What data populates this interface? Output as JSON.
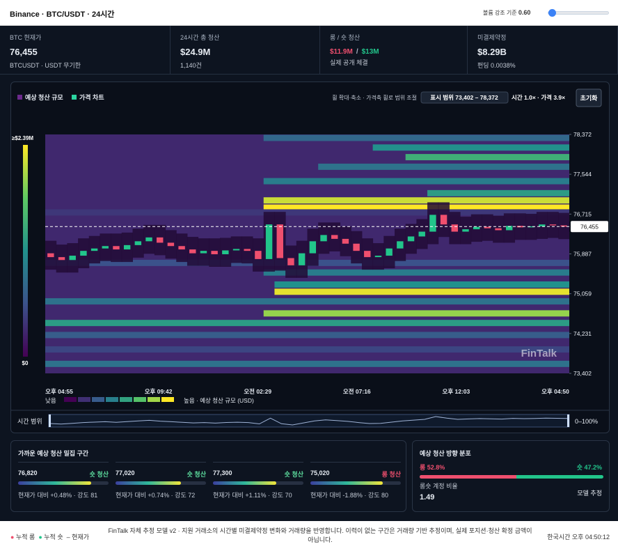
{
  "header": {
    "title": "Binance · BTC/USDT · 24시간",
    "slider_label": "볼륨 강조 기준",
    "slider_value": "0.60"
  },
  "stats": [
    {
      "label": "BTC 현재가",
      "value": "76,455",
      "sub": "BTCUSDT · USDT 무기한"
    },
    {
      "label": "24시간 총 청산",
      "value": "$24.9M",
      "sub": "1,140건"
    },
    {
      "label": "롱 / 숏 청산",
      "long": "$11.9M",
      "sep": "/",
      "short": "$13M",
      "sub": "실제 공개 체결"
    },
    {
      "label": "미결제약정",
      "value": "$8.29B",
      "sub": "펀딩 0.0038%"
    }
  ],
  "chart_data": {
    "type": "liquidation-heatmap",
    "legend": [
      {
        "name": "예상 청산 규모",
        "color": "#6b2a8c"
      },
      {
        "name": "가격 차트",
        "color": "#2bd4a0"
      }
    ],
    "hint": "휠 확대·축소 · 가격축 휠로 범위 조절",
    "range_label": "표시 범위 73,402 – 78,372",
    "zoom_label": "시간 1.0× · 가격 3.9×",
    "reset": "초기화",
    "colorbar_max": "≥$2.39M",
    "colorbar_min": "$0",
    "scale_low": "낮음",
    "scale_high": "높음 · 예상 청산 규모 (USD)",
    "time_range_label": "시간 범위",
    "time_range_value": "0–100%",
    "watermark": "FinTalk",
    "ylim": [
      73402,
      78372
    ],
    "size_max": 2.39,
    "yticks": [
      {
        "value": 78372,
        "label": "78,372"
      },
      {
        "value": 77544,
        "label": "77,544"
      },
      {
        "value": 76715,
        "label": "76,715"
      },
      {
        "value": 75887,
        "label": "75,887"
      },
      {
        "value": 75059,
        "label": "75,059"
      },
      {
        "value": 74231,
        "label": "74,231"
      },
      {
        "value": 73402,
        "label": "73,402"
      }
    ],
    "xlabels": [
      "오후 04:55",
      "오후 09:42",
      "오전 02:29",
      "오전 07:16",
      "오후 12:03",
      "오후 04:50"
    ],
    "current_price": {
      "value": 76455,
      "label": "76,455"
    },
    "open": 75900,
    "close": [
      75820,
      75760,
      75850,
      75950,
      76000,
      76050,
      75980,
      76070,
      76150,
      76230,
      76120,
      76050,
      75980,
      75900,
      75950,
      75880,
      75960,
      75990,
      75950,
      75780,
      76500,
      75800,
      75650,
      75900,
      76150,
      76280,
      76200,
      76100,
      75950,
      75820,
      75850,
      76000,
      76150,
      76250,
      76350,
      76700,
      76500,
      76350,
      76400,
      76450,
      76420,
      76380,
      76470,
      76440,
      76460,
      76500,
      76480,
      76455
    ],
    "up_color": "#22c58b",
    "down_color": "#ef4f6e",
    "bands": [
      {
        "level": 78300,
        "from": 20,
        "size": 0.8
      },
      {
        "level": 78100,
        "from": 30,
        "size": 1.2
      },
      {
        "level": 77900,
        "from": 33,
        "size": 1.5
      },
      {
        "level": 77700,
        "from": 25,
        "size": 0.9
      },
      {
        "level": 77400,
        "from": 20,
        "size": 1.0
      },
      {
        "level": 77150,
        "from": 35,
        "size": 1.3
      },
      {
        "level": 77000,
        "from": 20,
        "size": 2.2
      },
      {
        "level": 76850,
        "from": 20,
        "size": 2.39
      },
      {
        "level": 76750,
        "from": 0,
        "size": 0.4
      },
      {
        "level": 75700,
        "from": 0,
        "size": 0.6
      },
      {
        "level": 75500,
        "from": 20,
        "size": 1.0
      },
      {
        "level": 75250,
        "from": 21,
        "size": 1.2
      },
      {
        "level": 75100,
        "from": 21,
        "size": 2.3
      },
      {
        "level": 74900,
        "from": 0,
        "size": 0.9
      },
      {
        "level": 74650,
        "from": 20,
        "size": 2.0
      },
      {
        "level": 74450,
        "from": 0,
        "size": 1.3
      },
      {
        "level": 74200,
        "from": 0,
        "size": 0.7
      },
      {
        "level": 73900,
        "from": 0,
        "size": 0.5
      },
      {
        "level": 73600,
        "from": 0,
        "size": 0.9
      }
    ]
  },
  "clusters": {
    "title": "가까운 예상 청산 밀집 구간",
    "items": [
      {
        "price": "76,820",
        "side": "숏 청산",
        "desc": "현재가 대비 +0.48% · 강도",
        "strength": 81
      },
      {
        "price": "77,020",
        "side": "숏 청산",
        "desc": "현재가 대비 +0.74% · 강도",
        "strength": 72
      },
      {
        "price": "77,300",
        "side": "숏 청산",
        "desc": "현재가 대비 +1.11% · 강도",
        "strength": 70
      },
      {
        "price": "75,020",
        "side": "롱 청산",
        "desc": "현재가 대비 -1.88% · 강도",
        "strength": 80
      }
    ]
  },
  "direction": {
    "title": "예상 청산 방향 분포",
    "long": {
      "value": 52.8,
      "label": "롱 52.8%"
    },
    "short": {
      "value": 47.2,
      "label": "숏 47.2%"
    },
    "ratio_label": "롱숏 계정 비율",
    "ratio": "1.49",
    "note": "모델 추정"
  },
  "footer": {
    "legend": [
      "누적 롱",
      "누적 숏",
      "현재가"
    ],
    "text": "FinTalk 자체 추정 모델 v2 · 지원 거래소의 시간별 미결제약정 변화와 거래량을 반영합니다. 이력이 없는 구간은 거래량 기반 추정이며, 실제 포지션·청산 확정 금액이 아닙니다.",
    "time": "한국시간 오후 04:50:12"
  }
}
